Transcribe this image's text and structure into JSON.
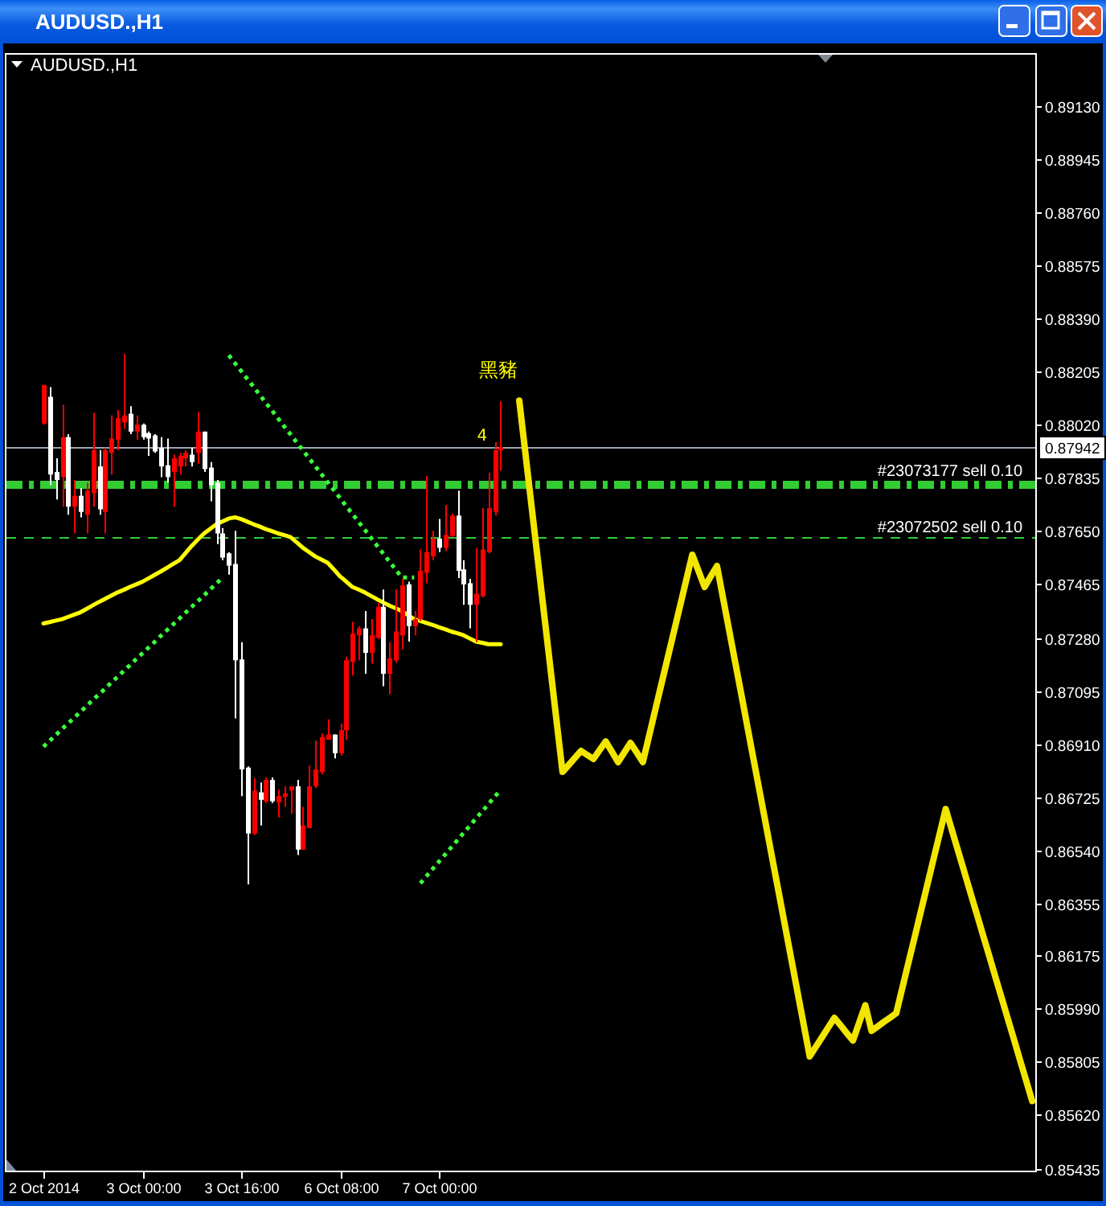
{
  "chart_data": {
    "type": "candlestick",
    "title": "AUDUSD.,H1",
    "subtitle": "AUDUSD.,H1",
    "categories": [
      "2 Oct 2014",
      null,
      null,
      null,
      null,
      null,
      null,
      null,
      null,
      null,
      null,
      null,
      null,
      null,
      null,
      null,
      "3 Oct 00:00",
      null,
      null,
      null,
      null,
      null,
      null,
      null,
      null,
      null,
      null,
      null,
      null,
      null,
      null,
      null,
      "3 Oct 16:00",
      null,
      null,
      null,
      null,
      null,
      null,
      null,
      null,
      null,
      null,
      null,
      null,
      null,
      null,
      null,
      "6 Oct 08:00",
      null,
      null,
      null,
      null,
      null,
      null,
      null,
      null,
      null,
      null,
      null,
      null,
      null,
      null,
      null,
      "7 Oct 00:00",
      null,
      null,
      null,
      null,
      null,
      null,
      null,
      null,
      null,
      null,
      null,
      null,
      null,
      null,
      null,
      null,
      null,
      null,
      null,
      null,
      null,
      null,
      null,
      null,
      null,
      null,
      null,
      null,
      null,
      null,
      null,
      null,
      null,
      null,
      null,
      null,
      null,
      null,
      null,
      null,
      null,
      null,
      null,
      null,
      null,
      null,
      null,
      null,
      null,
      null,
      null,
      null,
      null,
      null,
      null,
      null,
      null,
      null,
      null,
      null,
      null,
      null,
      null,
      null,
      null,
      null,
      null,
      null,
      null,
      null,
      null,
      null,
      null,
      null,
      null,
      null,
      null,
      null,
      null,
      null,
      null,
      null,
      null,
      null,
      null,
      null,
      null,
      null,
      null,
      null,
      null,
      null,
      null,
      null,
      null,
      null
    ],
    "ohlc": [
      [
        0.88024,
        0.88158,
        0.8802,
        0.88158
      ],
      [
        0.88117,
        0.88151,
        0.8781,
        0.87847
      ],
      [
        0.87856,
        0.87903,
        0.8776,
        0.87828
      ],
      [
        0.87838,
        0.88089,
        0.87735,
        0.87977
      ],
      [
        0.87977,
        0.87987,
        0.87707,
        0.87735
      ],
      [
        0.87735,
        0.87828,
        0.87642,
        0.87773
      ],
      [
        0.87773,
        0.878,
        0.87698,
        0.87717
      ],
      [
        0.87707,
        0.87819,
        0.87642,
        0.87791
      ],
      [
        0.87782,
        0.88061,
        0.87735,
        0.87931
      ],
      [
        0.87875,
        0.87931,
        0.87707,
        0.87726
      ],
      [
        0.87717,
        0.8794,
        0.87642,
        0.87931
      ],
      [
        0.87922,
        0.88052,
        0.87847,
        0.87972
      ],
      [
        0.87968,
        0.88071,
        0.87931,
        0.88043
      ],
      [
        0.88028,
        0.88266,
        0.88005,
        0.88052
      ],
      [
        0.88058,
        0.88084,
        0.87987,
        0.87996
      ],
      [
        0.87996,
        0.88052,
        0.87968,
        0.8802
      ],
      [
        0.8802,
        0.88024,
        0.87968,
        0.87977
      ],
      [
        0.87991,
        0.87996,
        0.87912,
        0.87972
      ],
      [
        0.87983,
        0.87987,
        0.87922,
        0.87927
      ],
      [
        0.8794,
        0.87977,
        0.87838,
        0.87875
      ],
      [
        0.87879,
        0.87972,
        0.87819,
        0.87838
      ],
      [
        0.87856,
        0.87916,
        0.87735,
        0.87903
      ],
      [
        0.87875,
        0.87922,
        0.87847,
        0.87912
      ],
      [
        0.87903,
        0.87931,
        0.87875,
        0.87922
      ],
      [
        0.87916,
        0.8794,
        0.87875,
        0.8789
      ],
      [
        0.87922,
        0.88065,
        0.87884,
        0.87996
      ],
      [
        0.87996,
        0.87996,
        0.87856,
        0.87866
      ],
      [
        0.87871,
        0.8789,
        0.87754,
        0.8781
      ],
      [
        0.87819,
        0.87828,
        0.87605,
        0.87642
      ],
      [
        0.87642,
        0.87661,
        0.87549,
        0.87558
      ],
      [
        0.87573,
        0.87577,
        0.87499,
        0.8753
      ],
      [
        0.87536,
        0.87651,
        0.86999,
        0.87201
      ],
      [
        0.87204,
        0.87264,
        0.86729,
        0.86822
      ],
      [
        0.86828,
        0.86832,
        0.86422,
        0.86599
      ],
      [
        0.86599,
        0.86791,
        0.86593,
        0.86748
      ],
      [
        0.86742,
        0.86776,
        0.86627,
        0.86716
      ],
      [
        0.86711,
        0.86794,
        0.86705,
        0.86785
      ],
      [
        0.86785,
        0.86794,
        0.86705,
        0.86711
      ],
      [
        0.86707,
        0.86752,
        0.86655,
        0.86729
      ],
      [
        0.86726,
        0.86763,
        0.86692,
        0.86738
      ],
      [
        0.86748,
        0.86763,
        0.86668,
        0.86763
      ],
      [
        0.86763,
        0.86785,
        0.86524,
        0.86543
      ],
      [
        0.86543,
        0.86692,
        0.86543,
        0.86627
      ],
      [
        0.86618,
        0.86835,
        0.86618,
        0.86763
      ],
      [
        0.86763,
        0.86921,
        0.86757,
        0.86822
      ],
      [
        0.86813,
        0.86947,
        0.86804,
        0.86934
      ],
      [
        0.86925,
        0.86996,
        0.86925,
        0.86943
      ],
      [
        0.86943,
        0.86943,
        0.8686,
        0.86878
      ],
      [
        0.86878,
        0.86981,
        0.86869,
        0.86958
      ],
      [
        0.86958,
        0.87214,
        0.86925,
        0.87201
      ],
      [
        0.87195,
        0.87335,
        0.87148,
        0.87294
      ],
      [
        0.87288,
        0.8732,
        0.87201,
        0.87312
      ],
      [
        0.87312,
        0.87372,
        0.87154,
        0.87227
      ],
      [
        0.87227,
        0.87344,
        0.87189,
        0.87288
      ],
      [
        0.87279,
        0.874,
        0.87275,
        0.87387
      ],
      [
        0.87387,
        0.87447,
        0.87111,
        0.87154
      ],
      [
        0.87154,
        0.87264,
        0.87083,
        0.87208
      ],
      [
        0.87201,
        0.87447,
        0.87193,
        0.87301
      ],
      [
        0.87288,
        0.87484,
        0.87238,
        0.87461
      ],
      [
        0.87465,
        0.87474,
        0.87266,
        0.8732
      ],
      [
        0.8732,
        0.87372,
        0.87288,
        0.87344
      ],
      [
        0.87344,
        0.87586,
        0.87338,
        0.87512
      ],
      [
        0.87506,
        0.87842,
        0.87469,
        0.87577
      ],
      [
        0.87562,
        0.87651,
        0.87549,
        0.87624
      ],
      [
        0.87624,
        0.87692,
        0.87577,
        0.87592
      ],
      [
        0.87592,
        0.87741,
        0.87581,
        0.87637
      ],
      [
        0.87633,
        0.87711,
        0.87629,
        0.87704
      ],
      [
        0.87704,
        0.87791,
        0.87487,
        0.87512
      ],
      [
        0.87517,
        0.87549,
        0.87394,
        0.87465
      ],
      [
        0.87469,
        0.87484,
        0.87312,
        0.87394
      ],
      [
        0.87394,
        0.87592,
        0.87264,
        0.87432
      ],
      [
        0.87424,
        0.8773,
        0.87419,
        0.87586
      ],
      [
        0.87577,
        0.87853,
        0.87573,
        0.8773
      ],
      [
        0.87717,
        0.87959,
        0.87704,
        0.87931
      ],
      [
        0.87931,
        0.88102,
        0.8786,
        0.87942
      ],
      null,
      null,
      null,
      null,
      null,
      null,
      null,
      null,
      null,
      null,
      null,
      null,
      null,
      null,
      null,
      null,
      null,
      null,
      null,
      null,
      null,
      null,
      null,
      null,
      null,
      null,
      null,
      null,
      null,
      null,
      null,
      null,
      null,
      null,
      null,
      null,
      null,
      null,
      null,
      null,
      null,
      null,
      null,
      null,
      null,
      null,
      null,
      null,
      null,
      null,
      null,
      null,
      null,
      null,
      null,
      null,
      null,
      null,
      null,
      null,
      null,
      null,
      null,
      null,
      null,
      null,
      null,
      null,
      null,
      null,
      null,
      null,
      null,
      null,
      null,
      null,
      null,
      null,
      null,
      null,
      null,
      null,
      null,
      null,
      null,
      null
    ],
    "colors": [
      "#ff0000",
      "#ffffff",
      "#ffffff",
      "#ff0000",
      "#ffffff",
      "#ff0000",
      "#ffffff",
      "#ff0000",
      "#ff0000",
      "#ffffff",
      "#ff0000",
      "#ff0000",
      "#ff0000",
      "#ff0000",
      "#ffffff",
      "#ff0000",
      "#ffffff",
      "#ffffff",
      "#ffffff",
      "#ffffff",
      "#ffffff",
      "#ff0000",
      "#ff0000",
      "#ff0000",
      "#ffffff",
      "#ff0000",
      "#ffffff",
      "#ffffff",
      "#ffffff",
      "#ffffff",
      "#ffffff",
      "#ffffff",
      "#ffffff",
      "#ffffff",
      "#ff0000",
      "#ffffff",
      "#ff0000",
      "#ffffff",
      "#ff0000",
      "#ff0000",
      "#ff0000",
      "#ffffff",
      "#ff0000",
      "#ff0000",
      "#ff0000",
      "#ff0000",
      "#ff0000",
      "#ffffff",
      "#ff0000",
      "#ff0000",
      "#ff0000",
      "#ff0000",
      "#ffffff",
      "#ff0000",
      "#ff0000",
      "#ffffff",
      "#ff0000",
      "#ff0000",
      "#ff0000",
      "#ffffff",
      "#ff0000",
      "#ff0000",
      "#ff0000",
      "#ff0000",
      "#ffffff",
      "#ff0000",
      "#ff0000",
      "#ffffff",
      "#ffffff",
      "#ffffff",
      "#ff0000",
      "#ff0000",
      "#ff0000",
      "#ff0000",
      "#ff0000",
      null,
      null,
      null,
      null,
      null,
      null,
      null,
      null,
      null,
      null,
      null,
      null,
      null,
      null,
      null,
      null,
      null,
      null,
      null,
      null,
      null,
      null,
      null,
      null,
      null,
      null,
      null,
      null,
      null,
      null,
      null,
      null,
      null,
      null,
      null,
      null,
      null,
      null,
      null,
      null,
      null,
      null,
      null,
      null,
      null,
      null,
      null,
      null,
      null,
      null,
      null,
      null,
      null,
      null,
      null,
      null,
      null,
      null,
      null,
      null,
      null,
      null,
      null,
      null,
      null,
      null,
      null,
      null,
      null,
      null,
      null,
      null,
      null,
      null,
      null,
      null,
      null,
      null,
      null,
      null,
      null,
      null,
      null,
      null,
      null,
      null
    ],
    "series": [
      {
        "type": "line",
        "color": "#ffff00",
        "values": [
          0.87329,
          0.87334,
          0.87339,
          0.87344,
          0.87352,
          0.8736,
          0.87368,
          0.8738,
          0.87392,
          0.87404,
          0.87415,
          0.87426,
          0.87437,
          0.87446,
          0.87456,
          0.87465,
          0.87474,
          0.87486,
          0.87498,
          0.8751,
          0.87523,
          0.87536,
          0.87549,
          0.87574,
          0.87599,
          0.87621,
          0.87642,
          0.87658,
          0.87674,
          0.87684,
          0.87694,
          0.87698,
          0.87692,
          0.87683,
          0.87674,
          0.87666,
          0.87657,
          0.8765,
          0.87642,
          0.87636,
          0.87629,
          0.87611,
          0.87592,
          0.87577,
          0.87562,
          0.87551,
          0.8754,
          0.87517,
          0.87493,
          0.87475,
          0.87456,
          0.87447,
          0.87437,
          0.87425,
          0.87413,
          0.87402,
          0.87391,
          0.87382,
          0.87372,
          0.87358,
          0.87344,
          0.87338,
          0.87331,
          0.87324,
          0.87316,
          0.87309,
          0.87301,
          0.87295,
          0.87288,
          0.87277,
          0.87266,
          0.87262,
          0.87257,
          0.87257,
          0.87257,
          null,
          null,
          null,
          null,
          null,
          null,
          null,
          null,
          null,
          null,
          null,
          null,
          null,
          null,
          null,
          null,
          null,
          null,
          null,
          null,
          null,
          null,
          null,
          null,
          null,
          null,
          null,
          null,
          null,
          null,
          null,
          null,
          null,
          null,
          null,
          null,
          null,
          null,
          null,
          null,
          null,
          null,
          null,
          null,
          null,
          null,
          null,
          null,
          null,
          null,
          null,
          null,
          null,
          null,
          null,
          null,
          null,
          null,
          null,
          null,
          null,
          null,
          null,
          null,
          null,
          null,
          null,
          null,
          null,
          null,
          null,
          null,
          null,
          null,
          null,
          null,
          null,
          null,
          null,
          null,
          null,
          null,
          null,
          null,
          null,
          null
        ]
      },
      {
        "type": "line",
        "line_style": "dotted",
        "color": "#3cff3c",
        "values": [
          null,
          null,
          null,
          null,
          null,
          null,
          null,
          null,
          null,
          null,
          null,
          null,
          null,
          null,
          null,
          null,
          null,
          null,
          null,
          null,
          null,
          null,
          null,
          null,
          null,
          null,
          null,
          null,
          null,
          null,
          0.88262,
          0.88234,
          0.88207,
          0.88179,
          0.88152,
          0.88124,
          0.88096,
          0.88069,
          0.88041,
          0.88013,
          0.87986,
          0.87958,
          0.87931,
          0.87903,
          0.87876,
          0.87848,
          0.8782,
          0.87793,
          0.87765,
          0.87737,
          0.8771,
          0.87682,
          0.87655,
          0.87627,
          0.87599,
          0.87572,
          0.87544,
          0.87517,
          0.87489,
          0.87489,
          0.87489,
          null,
          null,
          null,
          null,
          null,
          null,
          null,
          null,
          null,
          null,
          null,
          null,
          null,
          null,
          null,
          null,
          null,
          null,
          null,
          null,
          null,
          null,
          null,
          null,
          null,
          null,
          null,
          null,
          null,
          null,
          null,
          null,
          null,
          null,
          null,
          null,
          null,
          null,
          null,
          null,
          null,
          null,
          null,
          null,
          null,
          null,
          null,
          null,
          null,
          null,
          null,
          null,
          null,
          null,
          null,
          null,
          null,
          null,
          null,
          null,
          null,
          null,
          null,
          null,
          null,
          null,
          null,
          null,
          null,
          null,
          null,
          null,
          null,
          null,
          null,
          null,
          null,
          null,
          null,
          null,
          null,
          null,
          null,
          null,
          null,
          null,
          null,
          null,
          null,
          null,
          null,
          null,
          null,
          null,
          null,
          null,
          null,
          null,
          null,
          null
        ]
      },
      {
        "type": "line",
        "line_style": "dotted",
        "color": "#3cff3c",
        "values": [
          0.86901,
          0.86921,
          0.86941,
          0.86962,
          0.86982,
          0.87002,
          0.87022,
          0.87043,
          0.87063,
          0.87083,
          0.87103,
          0.87124,
          0.87144,
          0.87164,
          0.87184,
          0.87205,
          0.87225,
          0.87245,
          0.87265,
          0.87286,
          0.87306,
          0.87326,
          0.87346,
          0.87367,
          0.87387,
          0.87407,
          0.87427,
          0.87448,
          0.87468,
          0.87488,
          null,
          null,
          null,
          null,
          null,
          null,
          null,
          null,
          null,
          null,
          null,
          null,
          null,
          null,
          null,
          null,
          null,
          null,
          null,
          null,
          null,
          null,
          null,
          null,
          null,
          null,
          null,
          null,
          null,
          null,
          null,
          null,
          null,
          null,
          null,
          null,
          null,
          null,
          null,
          null,
          null,
          null,
          null,
          null,
          null,
          null,
          null,
          null,
          null,
          null,
          null,
          null,
          null,
          null,
          null,
          null,
          null,
          null,
          null,
          null,
          null,
          null,
          null,
          null,
          null,
          null,
          null,
          null,
          null,
          null,
          null,
          null,
          null,
          null,
          null,
          null,
          null,
          null,
          null,
          null,
          null,
          null,
          null,
          null,
          null,
          null,
          null,
          null,
          null,
          null,
          null,
          null,
          null,
          null,
          null,
          null,
          null,
          null,
          null,
          null,
          null,
          null,
          null,
          null,
          null,
          null,
          null,
          null,
          null,
          null,
          null,
          null,
          null,
          null,
          null,
          null,
          null,
          null,
          null,
          null,
          null,
          null,
          null,
          null,
          null,
          null,
          null,
          null,
          null,
          null,
          null
        ]
      },
      {
        "type": "line",
        "line_style": "dotted",
        "color": "#3cff3c",
        "values": [
          null,
          null,
          null,
          null,
          null,
          null,
          null,
          null,
          null,
          null,
          null,
          null,
          null,
          null,
          null,
          null,
          null,
          null,
          null,
          null,
          null,
          null,
          null,
          null,
          null,
          null,
          null,
          null,
          null,
          null,
          null,
          null,
          null,
          null,
          null,
          null,
          null,
          null,
          null,
          null,
          null,
          null,
          null,
          null,
          null,
          null,
          null,
          null,
          null,
          null,
          null,
          null,
          null,
          null,
          null,
          null,
          null,
          null,
          null,
          null,
          null,
          0.86426,
          0.86451,
          0.86476,
          0.86501,
          0.86526,
          0.86551,
          0.86576,
          0.86601,
          0.86626,
          0.86651,
          0.86676,
          0.86701,
          0.86726,
          0.86751,
          null,
          null,
          null,
          null,
          null,
          null,
          null,
          null,
          null,
          null,
          null,
          null,
          null,
          null,
          null,
          null,
          null,
          null,
          null,
          null,
          null,
          null,
          null,
          null,
          null,
          null,
          null,
          null,
          null,
          null,
          null,
          null,
          null,
          null,
          null,
          null,
          null,
          null,
          null,
          null,
          null,
          null,
          null,
          null,
          null,
          null,
          null,
          null,
          null,
          null,
          null,
          null,
          null,
          null,
          null,
          null,
          null,
          null,
          null,
          null,
          null,
          null,
          null,
          null,
          null,
          null,
          null,
          null,
          null,
          null,
          null,
          null,
          null,
          null,
          null,
          null,
          null,
          null,
          null,
          null,
          null,
          null,
          null,
          null,
          null,
          null
        ]
      },
      {
        "type": "line",
        "color": "#f2e600",
        "values": [
          null,
          null,
          null,
          null,
          null,
          null,
          null,
          null,
          null,
          null,
          null,
          null,
          null,
          null,
          null,
          null,
          null,
          null,
          null,
          null,
          null,
          null,
          null,
          null,
          null,
          null,
          null,
          null,
          null,
          null,
          null,
          null,
          null,
          null,
          null,
          null,
          null,
          null,
          null,
          null,
          null,
          null,
          null,
          null,
          null,
          null,
          null,
          null,
          null,
          null,
          null,
          null,
          null,
          null,
          null,
          null,
          null,
          null,
          null,
          null,
          null,
          null,
          null,
          null,
          null,
          null,
          null,
          null,
          null,
          null,
          null,
          null,
          null,
          null,
          null,
          null,
          null,
          0.88104,
          0.8792,
          0.87735,
          0.87551,
          0.87366,
          0.87182,
          0.86997,
          0.86813,
          0.86837,
          0.86862,
          0.86886,
          0.86872,
          0.86858,
          0.86889,
          0.86919,
          0.86883,
          0.86847,
          0.86881,
          0.86914,
          0.86881,
          0.86847,
          0.86937,
          0.87028,
          0.87118,
          0.87208,
          0.87298,
          0.87388,
          0.87478,
          0.87568,
          0.87512,
          0.87456,
          0.87493,
          0.87529,
          0.87415,
          0.87302,
          0.87188,
          0.87075,
          0.86961,
          0.86847,
          0.86734,
          0.8662,
          0.86506,
          0.86393,
          0.86279,
          0.86165,
          0.86051,
          0.85938,
          0.85824,
          0.85858,
          0.85891,
          0.85925,
          0.85958,
          0.85932,
          0.85905,
          0.85879,
          0.85941,
          0.86002,
          0.85913,
          0.85928,
          0.85944,
          0.85959,
          0.85974,
          0.86063,
          0.86152,
          0.8624,
          0.86329,
          0.86418,
          0.86507,
          0.86595,
          0.86684,
          0.86612,
          0.86539,
          0.86467,
          0.86394,
          0.86322,
          0.86249,
          0.86177,
          0.86104,
          0.86032,
          0.85959,
          0.85887,
          0.85814,
          0.85742,
          0.85669
        ]
      }
    ],
    "ref_lines": [
      {
        "axis": "y",
        "value": 0.87942,
        "label": "0.87942",
        "color": "#9aa3b0",
        "line_style": "solid"
      },
      {
        "axis": "y",
        "value": 0.87814,
        "label": "#23073177 sell 0.10",
        "color": "#32cd32",
        "line_style": "dashed"
      },
      {
        "axis": "y",
        "value": 0.87629,
        "label": "#23072502 sell 0.10",
        "color": "#32cd32",
        "line_style": "dashed"
      }
    ],
    "annotations": [
      "黑豬",
      "4"
    ],
    "ylim": [
      0.85427,
      0.89312
    ],
    "yticks": [
      {
        "value": 0.8913,
        "label": "0.89130"
      },
      {
        "value": 0.88945,
        "label": "0.88945"
      },
      {
        "value": 0.8876,
        "label": "0.88760"
      },
      {
        "value": 0.88575,
        "label": "0.88575"
      },
      {
        "value": 0.8839,
        "label": "0.88390"
      },
      {
        "value": 0.88205,
        "label": "0.88205"
      },
      {
        "value": 0.8802,
        "label": "0.88020"
      },
      {
        "value": 0.87835,
        "label": "0.87835"
      },
      {
        "value": 0.8765,
        "label": "0.87650"
      },
      {
        "value": 0.87465,
        "label": "0.87465"
      },
      {
        "value": 0.8728,
        "label": "0.87280"
      },
      {
        "value": 0.87095,
        "label": "0.87095"
      },
      {
        "value": 0.8691,
        "label": "0.86910"
      },
      {
        "value": 0.86725,
        "label": "0.86725"
      },
      {
        "value": 0.8654,
        "label": "0.86540"
      },
      {
        "value": 0.86355,
        "label": "0.86355"
      },
      {
        "value": 0.86175,
        "label": "0.86175"
      },
      {
        "value": 0.8599,
        "label": "0.85990"
      },
      {
        "value": 0.85805,
        "label": "0.85805"
      },
      {
        "value": 0.8562,
        "label": "0.85620"
      },
      {
        "value": 0.85435,
        "label": "0.85435"
      }
    ]
  }
}
